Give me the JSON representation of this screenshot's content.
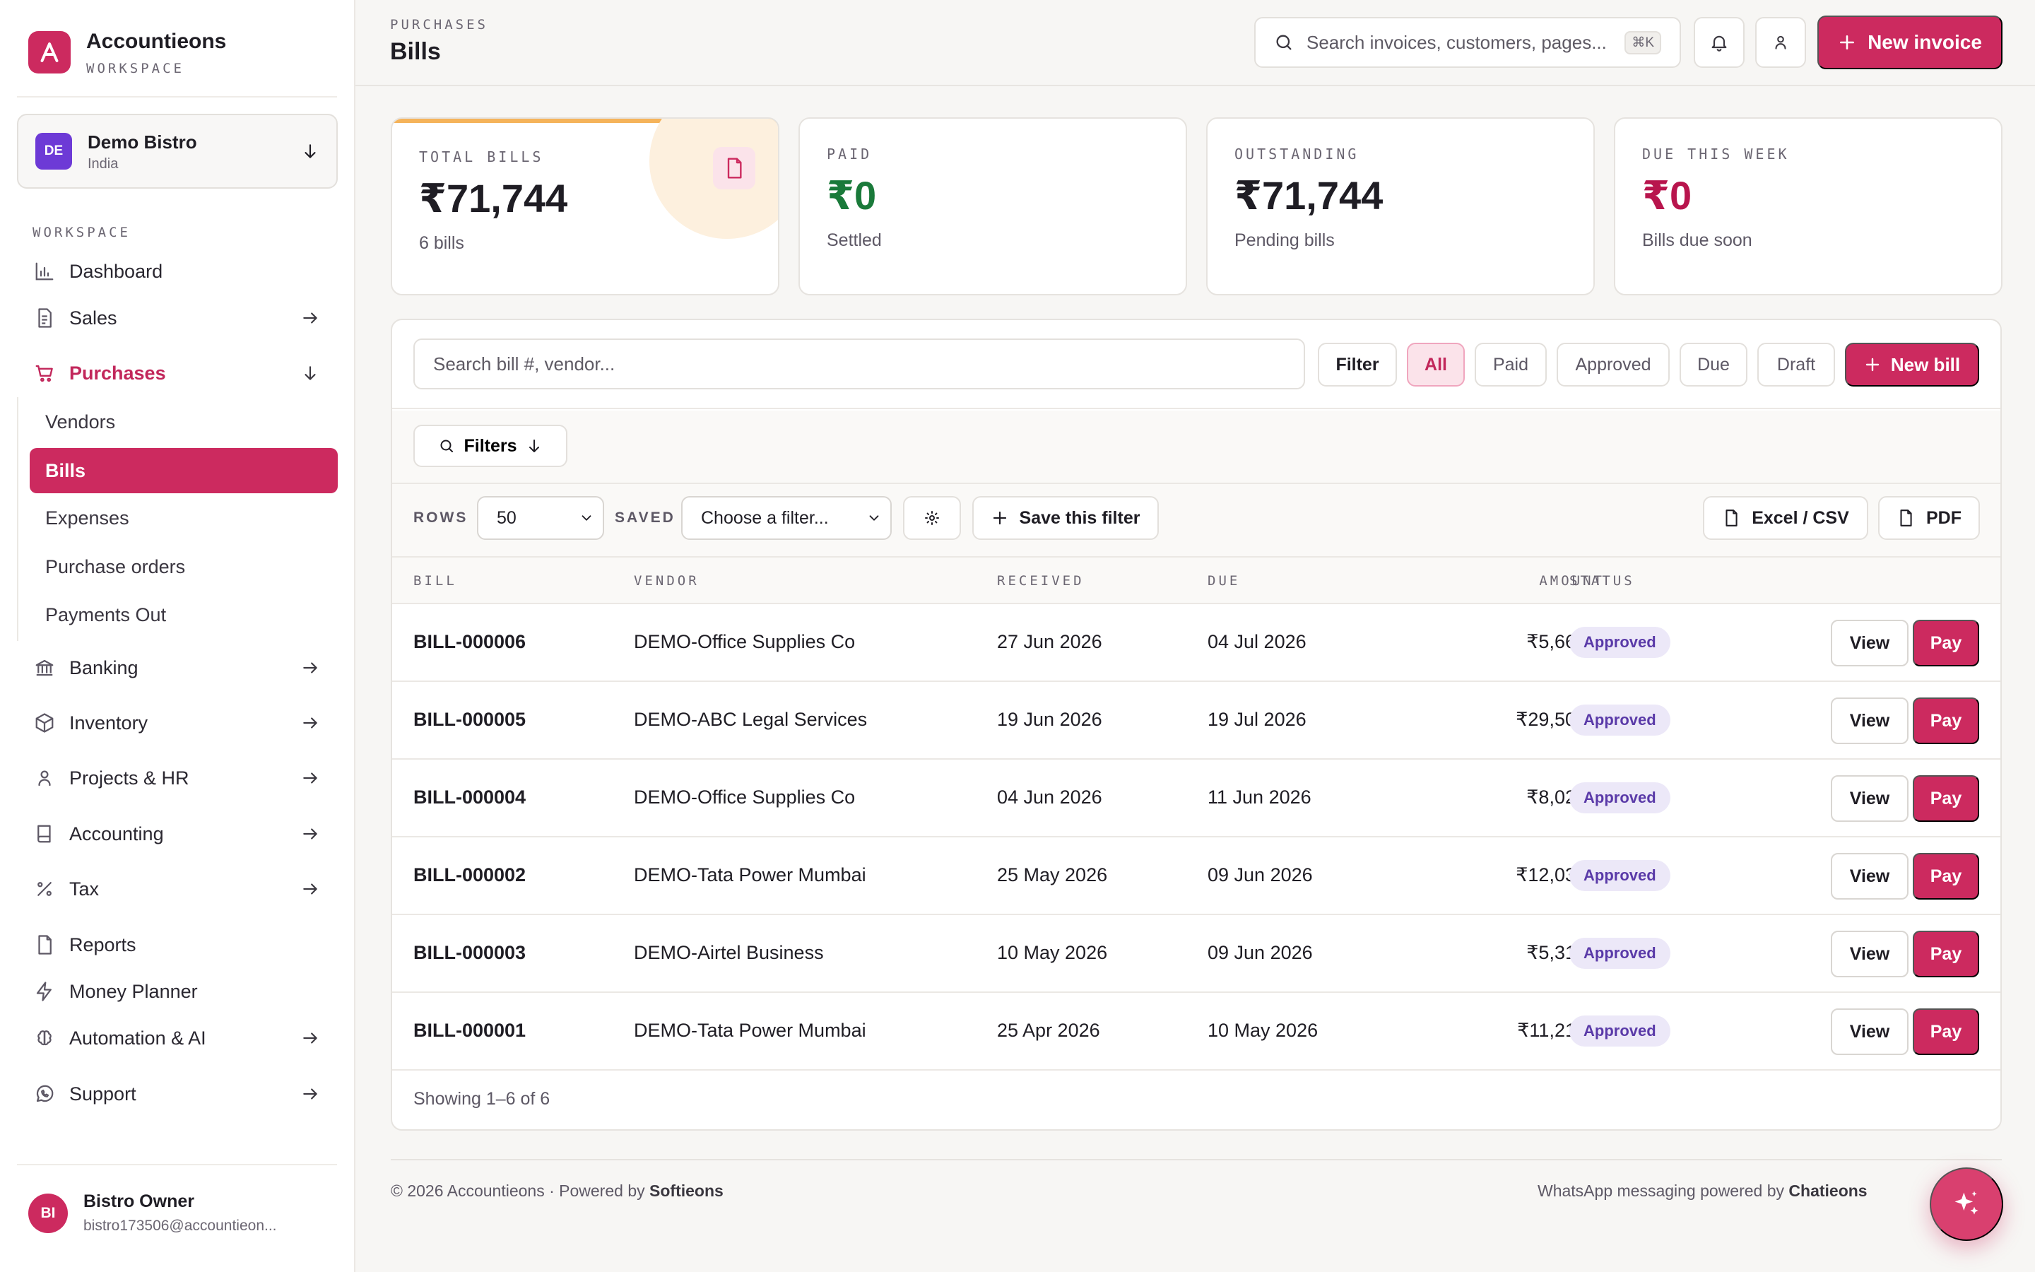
{
  "brand": {
    "name": "Accountieons",
    "subtitle": "WORKSPACE"
  },
  "org": {
    "initials": "DE",
    "name": "Demo Bistro",
    "country": "India"
  },
  "sidebar": {
    "section_label": "WORKSPACE",
    "items": {
      "dashboard": "Dashboard",
      "sales": "Sales",
      "purchases": "Purchases",
      "banking": "Banking",
      "inventory": "Inventory",
      "projects": "Projects & HR",
      "accounting": "Accounting",
      "tax": "Tax",
      "reports": "Reports",
      "money_planner": "Money Planner",
      "automation": "Automation & AI",
      "support": "Support"
    },
    "purchases_sub": {
      "vendors": "Vendors",
      "bills": "Bills",
      "expenses": "Expenses",
      "purchase_orders": "Purchase orders",
      "payments_out": "Payments Out"
    }
  },
  "user": {
    "initials": "BI",
    "name": "Bistro Owner",
    "email": "bistro173506@accountieon..."
  },
  "header": {
    "breadcrumb": "PURCHASES",
    "title": "Bills",
    "search_placeholder": "Search invoices, customers, pages...",
    "shortcut": "⌘K",
    "new_invoice": "New invoice"
  },
  "cards": [
    {
      "label": "TOTAL BILLS",
      "value": "₹71,744",
      "sub": "6 bills",
      "color": "#1f1d24"
    },
    {
      "label": "PAID",
      "value": "₹0",
      "sub": "Settled",
      "color": "#1a7a3a"
    },
    {
      "label": "OUTSTANDING",
      "value": "₹71,744",
      "sub": "Pending bills",
      "color": "#1f1d24"
    },
    {
      "label": "DUE THIS WEEK",
      "value": "₹0",
      "sub": "Bills due soon",
      "color": "#b8154d"
    }
  ],
  "toolbar": {
    "search_placeholder": "Search bill #, vendor...",
    "filter": "Filter",
    "status_tabs": {
      "all": "All",
      "paid": "Paid",
      "approved": "Approved",
      "due": "Due",
      "draft": "Draft"
    },
    "new_bill": "New bill",
    "filters": "Filters",
    "rows_label": "ROWS",
    "rows_value": "50",
    "saved_label": "SAVED",
    "saved_value": "Choose a filter...",
    "save_filter": "Save this filter",
    "excel": "Excel / CSV",
    "pdf": "PDF"
  },
  "table": {
    "headers": {
      "bill": "BILL",
      "vendor": "VENDOR",
      "received": "RECEIVED",
      "due": "DUE",
      "amount": "AMOUNT",
      "status": "STATUS"
    },
    "rows": [
      {
        "bill": "BILL-000006",
        "vendor": "DEMO-Office Supplies Co",
        "received": "27 Jun 2026",
        "due": "04 Jul 2026",
        "amount": "₹5,664",
        "status": "Approved"
      },
      {
        "bill": "BILL-000005",
        "vendor": "DEMO-ABC Legal Services",
        "received": "19 Jun 2026",
        "due": "19 Jul 2026",
        "amount": "₹29,500",
        "status": "Approved"
      },
      {
        "bill": "BILL-000004",
        "vendor": "DEMO-Office Supplies Co",
        "received": "04 Jun 2026",
        "due": "11 Jun 2026",
        "amount": "₹8,024",
        "status": "Approved"
      },
      {
        "bill": "BILL-000002",
        "vendor": "DEMO-Tata Power Mumbai",
        "received": "25 May 2026",
        "due": "09 Jun 2026",
        "amount": "₹12,036",
        "status": "Approved"
      },
      {
        "bill": "BILL-000003",
        "vendor": "DEMO-Airtel Business",
        "received": "10 May 2026",
        "due": "09 Jun 2026",
        "amount": "₹5,310",
        "status": "Approved"
      },
      {
        "bill": "BILL-000001",
        "vendor": "DEMO-Tata Power Mumbai",
        "received": "25 Apr 2026",
        "due": "10 May 2026",
        "amount": "₹11,210",
        "status": "Approved"
      }
    ],
    "view_label": "View",
    "pay_label": "Pay",
    "showing": "Showing 1–6 of 6"
  },
  "footer": {
    "left_prefix": "© 2026 Accountieons · Powered by ",
    "left_brand": "Softieons",
    "right_prefix": "WhatsApp messaging powered by ",
    "right_brand": "Chatieons"
  },
  "colors": {
    "accent": "#cc2a5f",
    "paid_green": "#1a7a3a",
    "due_red": "#b8154d",
    "badge_bg": "#ece8f8"
  }
}
